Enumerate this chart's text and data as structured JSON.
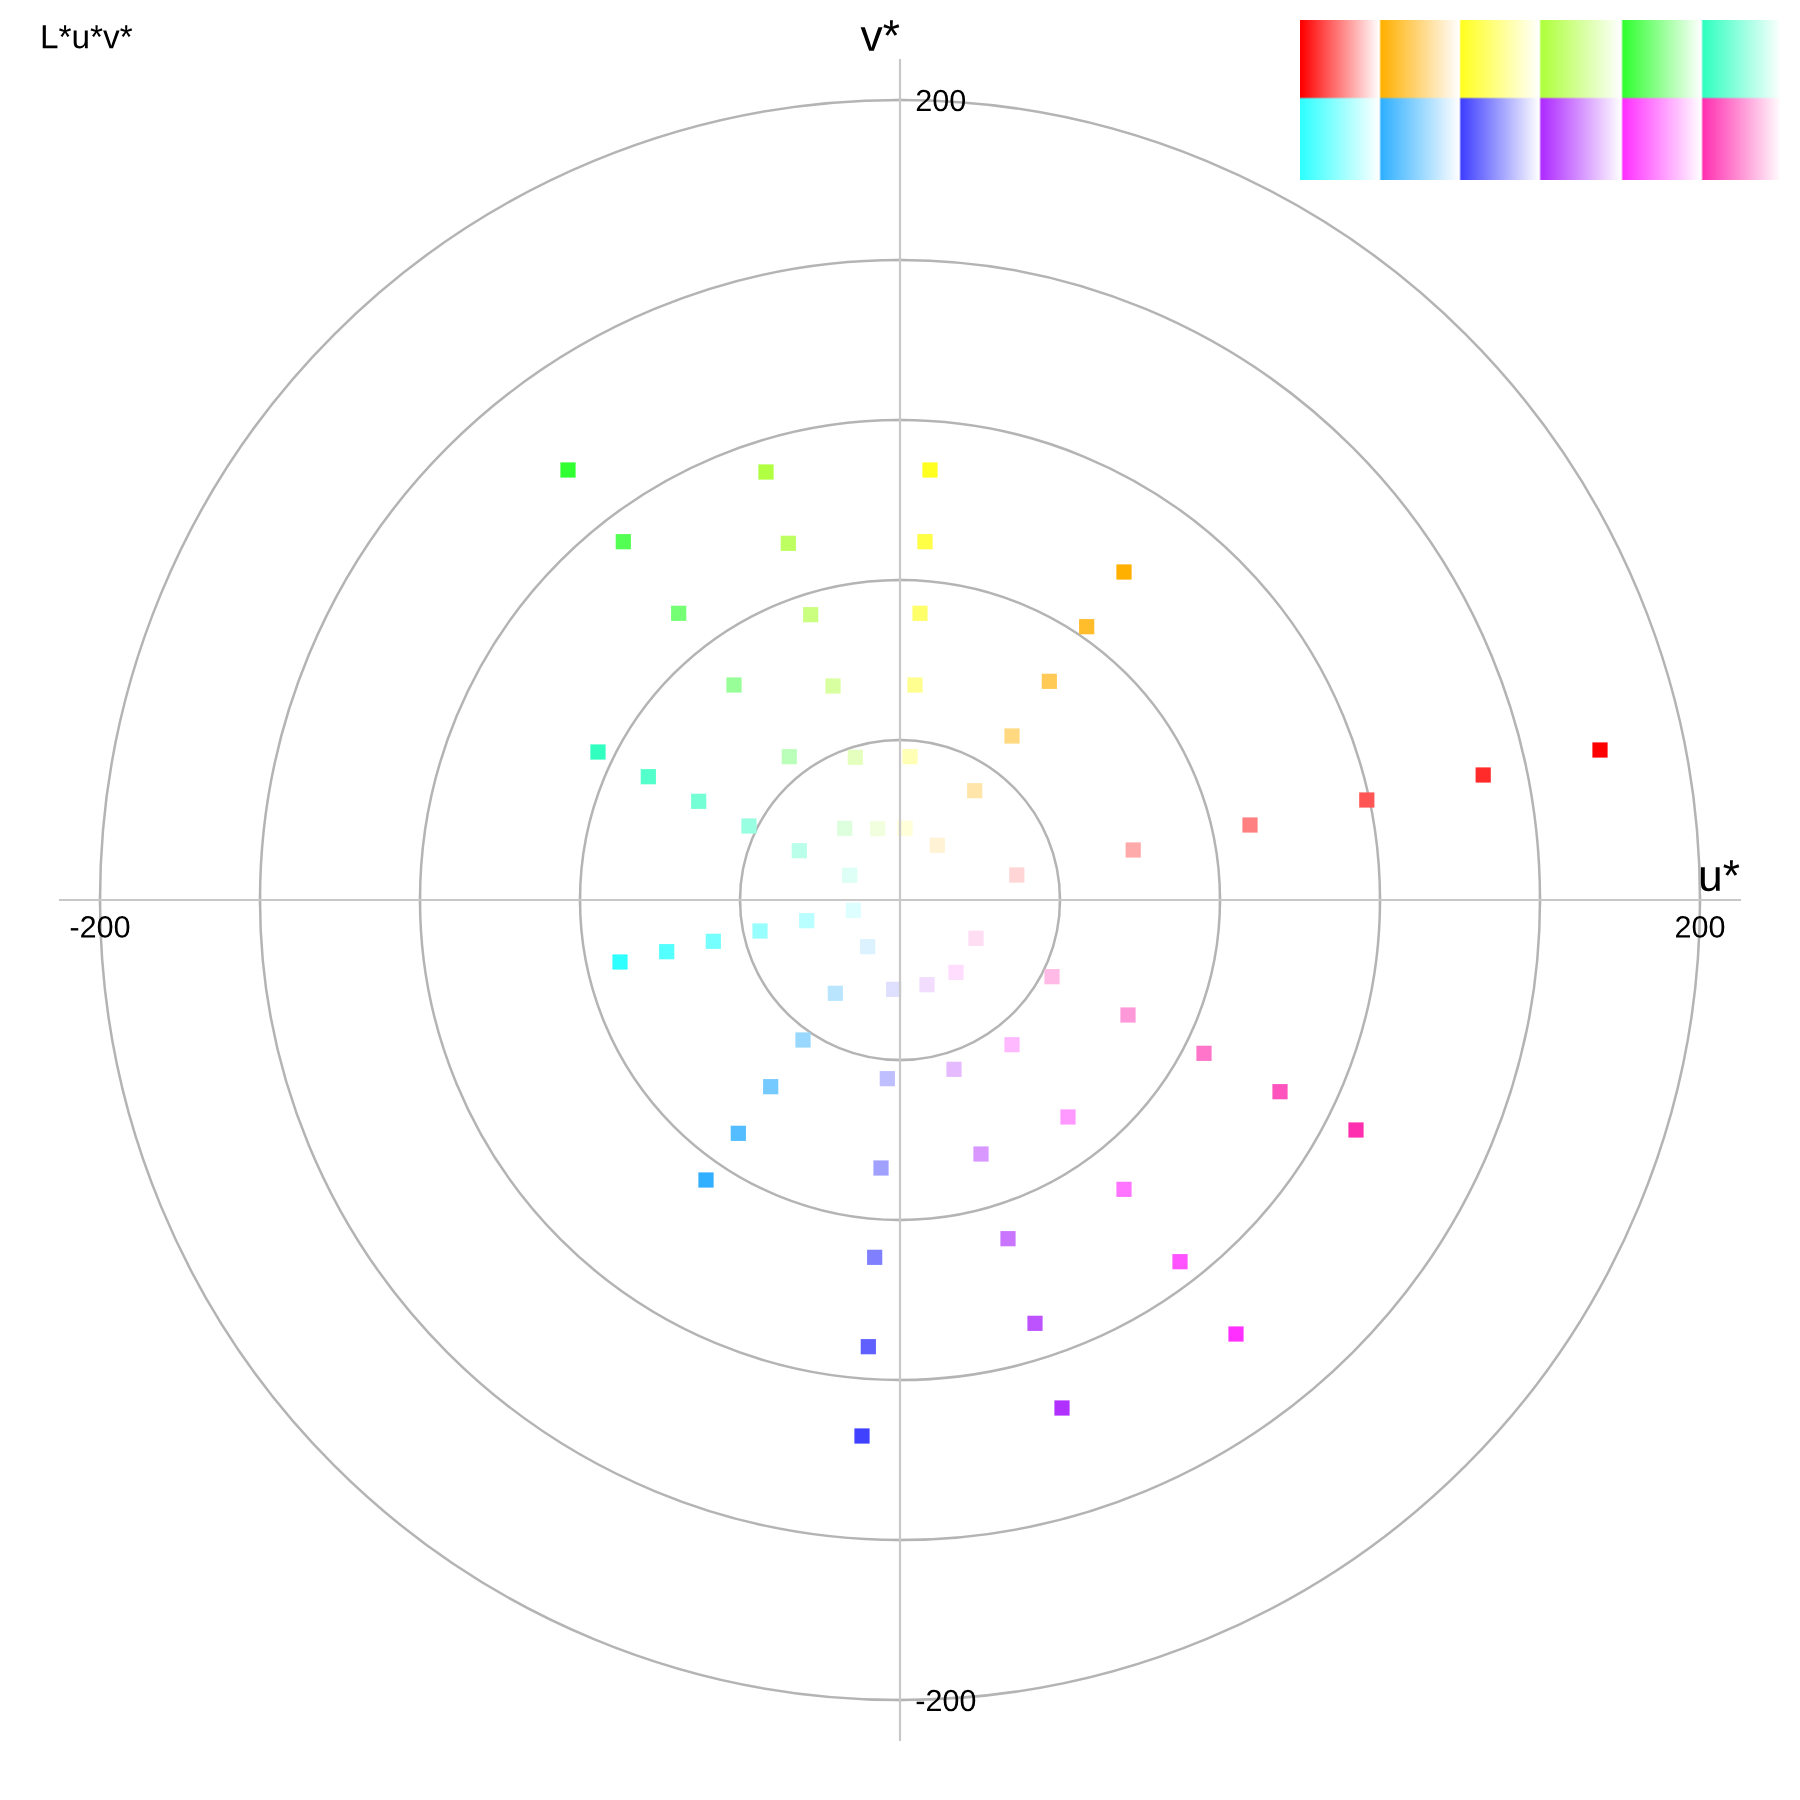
{
  "chart_data": {
    "type": "scatter",
    "title": "L*u*v*",
    "xlabel": "u*",
    "ylabel": "v*",
    "xlim": [
      -210,
      210
    ],
    "ylim": [
      -210,
      210
    ],
    "xticks": [
      -200,
      {
        "value": -160,
        "label": null
      },
      {
        "value": -120,
        "label": null
      },
      {
        "value": -80,
        "label": null
      },
      {
        "value": -40,
        "label": null
      },
      {
        "value": 40,
        "label": null
      },
      {
        "value": 80,
        "label": null
      },
      {
        "value": 120,
        "label": null
      },
      {
        "value": 160,
        "label": null
      },
      200
    ],
    "yticks": [
      -200,
      {
        "value": -160,
        "label": null
      },
      {
        "value": -120,
        "label": null
      },
      {
        "value": -80,
        "label": null
      },
      {
        "value": -40,
        "label": null
      },
      {
        "value": 40,
        "label": null
      },
      {
        "value": 80,
        "label": null
      },
      {
        "value": 120,
        "label": null
      },
      {
        "value": 160,
        "label": null
      },
      200
    ],
    "marker": "square",
    "series": [
      {
        "x": [
          29.2,
          58.3,
          87.5,
          116.7,
          145.8,
          175
        ],
        "values": [
          6.25,
          12.5,
          18.75,
          25,
          31.25,
          37.5
        ],
        "colors": [
          "#ffd5d5",
          "#ffaaaa",
          "#ff8080",
          "#ff5555",
          "#ff2b2b",
          "#ff0000"
        ]
      },
      {
        "x": [
          9.33,
          18.67,
          28,
          37.33,
          46.67,
          56
        ],
        "values": [
          13.67,
          27.33,
          41,
          54.67,
          68.33,
          82
        ],
        "colors": [
          "#fff2d5",
          "#ffe5aa",
          "#ffd880",
          "#ffca55",
          "#ffbd2b",
          "#ffb000"
        ]
      },
      {
        "x": [
          1.25,
          2.5,
          3.75,
          5,
          6.25,
          7.5
        ],
        "values": [
          17.92,
          35.83,
          53.75,
          71.67,
          89.58,
          107.5
        ],
        "colors": [
          "#ffffda",
          "#ffffb5",
          "#ffff90",
          "#ffff6a",
          "#ffff45",
          "#ffff20"
        ]
      },
      {
        "x": [
          -5.58,
          -11.17,
          -16.75,
          -22.33,
          -27.92,
          -33.5
        ],
        "values": [
          17.83,
          35.67,
          53.5,
          71.33,
          89.17,
          107
        ],
        "colors": [
          "#f2ffdf",
          "#e5ffbf",
          "#d8ffa0",
          "#caff80",
          "#bdff60",
          "#b0ff40"
        ]
      },
      {
        "x": [
          -13.83,
          -27.67,
          -41.5,
          -55.33,
          -69.17,
          -83
        ],
        "values": [
          17.92,
          35.83,
          53.75,
          71.67,
          89.58,
          107.5
        ],
        "colors": [
          "#ddffdd",
          "#baffba",
          "#98ff98",
          "#75ff75",
          "#53ff53",
          "#30ff30"
        ]
      },
      {
        "x": [
          -12.58,
          -25.17,
          -37.75,
          -50.33,
          -62.92,
          -75.5
        ],
        "values": [
          6.17,
          12.33,
          18.5,
          24.67,
          30.83,
          37
        ],
        "colors": [
          "#ddfff5",
          "#baffea",
          "#98ffe0",
          "#75ffd5",
          "#53ffcb",
          "#30ffc0"
        ]
      },
      {
        "x": [
          -11.67,
          -23.33,
          -35,
          -46.67,
          -58.33,
          -70
        ],
        "values": [
          -2.58,
          -5.17,
          -7.75,
          -10.33,
          -12.92,
          -15.5
        ],
        "colors": [
          "#ddffff",
          "#baffff",
          "#98ffff",
          "#75ffff",
          "#53ffff",
          "#30ffff"
        ]
      },
      {
        "x": [
          -8.08,
          -16.17,
          -24.25,
          -32.33,
          -40.42,
          -48.5
        ],
        "values": [
          -11.67,
          -23.33,
          -35,
          -46.67,
          -58.33,
          -70
        ],
        "colors": [
          "#ddf2ff",
          "#bae5ff",
          "#98d8ff",
          "#75caff",
          "#53bdff",
          "#30b0ff"
        ]
      },
      {
        "x": [
          -1.58,
          -3.17,
          -4.75,
          -6.33,
          -7.92,
          -9.5
        ],
        "values": [
          -22.33,
          -44.67,
          -67,
          -89.33,
          -111.67,
          -134
        ],
        "colors": [
          "#dfdfff",
          "#bfbfff",
          "#a0a0ff",
          "#8080ff",
          "#6060ff",
          "#4040ff"
        ]
      },
      {
        "x": [
          6.75,
          13.5,
          20.25,
          27,
          33.75,
          40.5
        ],
        "values": [
          -21.17,
          -42.33,
          -63.5,
          -84.67,
          -105.83,
          -127
        ],
        "colors": [
          "#f2ddff",
          "#e5baff",
          "#d898ff",
          "#ca75ff",
          "#bd53ff",
          "#b030ff"
        ]
      },
      {
        "x": [
          14,
          28,
          42,
          56,
          70,
          84
        ],
        "values": [
          -18.08,
          -36.17,
          -54.25,
          -72.33,
          -90.42,
          -108.5
        ],
        "colors": [
          "#ffddff",
          "#ffbaff",
          "#ff98ff",
          "#ff75ff",
          "#ff53ff",
          "#ff30ff"
        ]
      },
      {
        "x": [
          19,
          38,
          57,
          76,
          95,
          114
        ],
        "values": [
          -9.58,
          -19.17,
          -28.75,
          -38.33,
          -47.92,
          -57.5
        ],
        "colors": [
          "#ffddf2",
          "#ffbae5",
          "#ff98d8",
          "#ff75ca",
          "#ff53bd",
          "#ff30b0"
        ]
      }
    ]
  }
}
